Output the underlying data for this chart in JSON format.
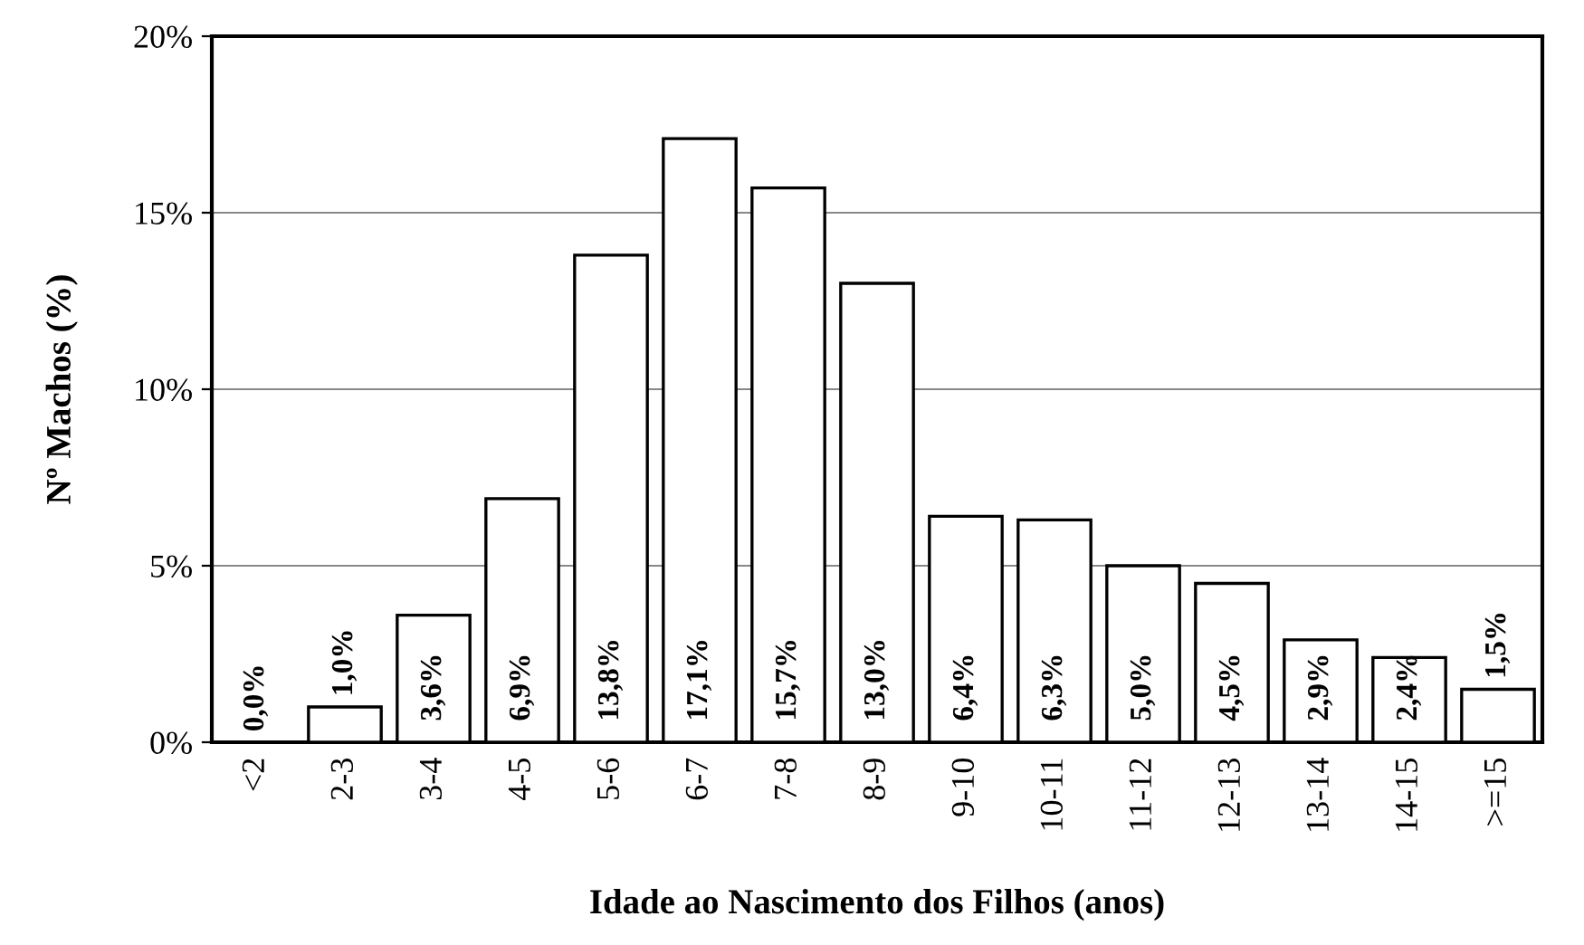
{
  "chart_data": {
    "type": "bar",
    "xlabel": "Idade ao Nascimento dos Filhos (anos)",
    "ylabel": "Nº Machos (%)",
    "categories": [
      "<2",
      "2-3",
      "3-4",
      "4-5",
      "5-6",
      "6-7",
      "7-8",
      "8-9",
      "9-10",
      "10-11",
      "11-12",
      "12-13",
      "13-14",
      "14-15",
      ">=15"
    ],
    "values": [
      0.0,
      1.0,
      3.6,
      6.9,
      13.8,
      17.1,
      15.7,
      13.0,
      6.4,
      6.3,
      5.0,
      4.5,
      2.9,
      2.4,
      1.5
    ],
    "value_labels": [
      "0,0%",
      "1,0%",
      "3,6%",
      "6,9%",
      "13,8%",
      "17,1%",
      "15,7%",
      "13,0%",
      "6,4%",
      "6,3%",
      "5,0%",
      "4,5%",
      "2,9%",
      "2,4%",
      "1,5%"
    ],
    "color": "#ffffff",
    "ylim": [
      0,
      20
    ],
    "yticks": [
      {
        "value": 0,
        "label": "0%"
      },
      {
        "value": 5,
        "label": "5%"
      },
      {
        "value": 10,
        "label": "10%"
      },
      {
        "value": 15,
        "label": "15%"
      },
      {
        "value": 20,
        "label": "20%"
      }
    ],
    "grid": "y",
    "legend": false
  }
}
